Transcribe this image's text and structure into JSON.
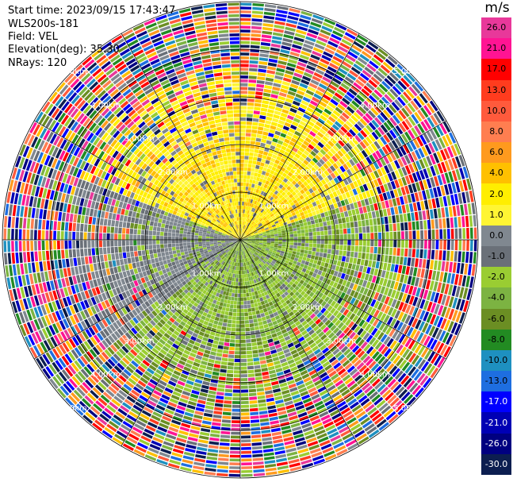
{
  "header": {
    "start_time": "Start time: 2023/09/15 17:43:47",
    "station": "WLS200s-181",
    "field": "Field: VEL",
    "elevation": "Elevation(deg): 35.30",
    "nrays": "NRays: 120"
  },
  "colorbar": {
    "unit": "m/s",
    "bins": [
      {
        "label": "26.0",
        "color": "#e8389a"
      },
      {
        "label": "21.0",
        "color": "#ff1493"
      },
      {
        "label": "17.0",
        "color": "#ff0000"
      },
      {
        "label": "13.0",
        "color": "#ff3c1e"
      },
      {
        "label": "10.0",
        "color": "#ff5a3c"
      },
      {
        "label": "8.0",
        "color": "#ff7e50"
      },
      {
        "label": "6.0",
        "color": "#ff9a1e"
      },
      {
        "label": "4.0",
        "color": "#ffc000"
      },
      {
        "label": "2.0",
        "color": "#ffee00"
      },
      {
        "label": "1.0",
        "color": "#fff533"
      },
      {
        "label": "0.0",
        "color": "#808890"
      },
      {
        "label": "-1.0",
        "color": "#6a7078"
      },
      {
        "label": "-2.0",
        "color": "#9acd32"
      },
      {
        "label": "-4.0",
        "color": "#7cb342"
      },
      {
        "label": "-6.0",
        "color": "#6b8e23"
      },
      {
        "label": "-8.0",
        "color": "#228b22"
      },
      {
        "label": "-10.0",
        "color": "#1e90c0"
      },
      {
        "label": "-13.0",
        "color": "#1e6ee0"
      },
      {
        "label": "-17.0",
        "color": "#0000ff"
      },
      {
        "label": "-21.0",
        "color": "#0000b4"
      },
      {
        "label": "-26.0",
        "color": "#000080"
      },
      {
        "label": "-30.0",
        "color": "#0c1e50"
      }
    ]
  },
  "chart_data": {
    "type": "heatmap",
    "title": "",
    "field": "VEL",
    "units": "m/s",
    "nrays": 120,
    "elevation_deg": 35.3,
    "range_rings_km": [
      1.0,
      2.0,
      3.0,
      4.0,
      5.0
    ],
    "ring_labels": [
      "1.00km",
      "2.00km",
      "3.00km",
      "4.00km",
      "5.00km"
    ],
    "max_range_km": 5.0,
    "spoke_angles_deg": [
      0,
      30,
      60,
      90,
      120,
      150,
      180,
      210,
      240,
      270,
      300,
      330
    ],
    "regions": [
      {
        "description": "north sector, inner range",
        "value_ms": 2.0
      },
      {
        "description": "south-east sector, inner range",
        "value_ms": -2.0
      },
      {
        "description": "west-south-west sector, inner range",
        "value_ms": 0.0
      },
      {
        "description": "outer ring beyond about 3.5 km",
        "value_ms": "noise across full scale"
      }
    ],
    "grid": true
  }
}
